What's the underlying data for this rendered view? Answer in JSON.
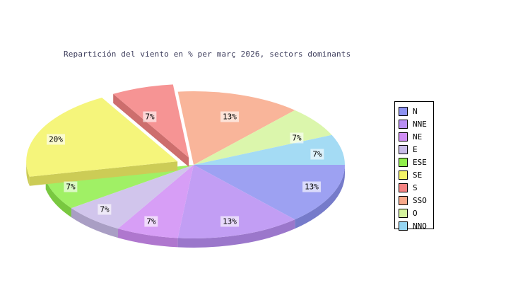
{
  "chart_data": {
    "type": "pie",
    "projection": "3d",
    "title": "Repartición del viento en % per març 2026, sectors dominants",
    "unit": "%",
    "legend_position": "right",
    "start_angle_deg": 0,
    "direction": "clockwise",
    "slices": [
      {
        "label": "N",
        "value": 13,
        "display_label": "13%",
        "angle_deg": 48,
        "color": "#8d92f0",
        "exploded": false
      },
      {
        "label": "NNE",
        "value": 13,
        "display_label": "13%",
        "angle_deg": 48,
        "color": "#b88ef2",
        "exploded": false
      },
      {
        "label": "NE",
        "value": 7,
        "display_label": "7%",
        "angle_deg": 24,
        "color": "#d08ef5",
        "exploded": false
      },
      {
        "label": "E",
        "value": 7,
        "display_label": "7%",
        "angle_deg": 24,
        "color": "#c9bce9",
        "exploded": false
      },
      {
        "label": "ESE",
        "value": 7,
        "display_label": "7%",
        "angle_deg": 24,
        "color": "#90ee4c",
        "exploded": false
      },
      {
        "label": "SE",
        "value": 20,
        "display_label": "20%",
        "angle_deg": 72,
        "color": "#f3f366",
        "exploded": true
      },
      {
        "label": "S",
        "value": 7,
        "display_label": "7%",
        "angle_deg": 24,
        "color": "#f48382",
        "exploded": true
      },
      {
        "label": "SSO",
        "value": 13,
        "display_label": "13%",
        "angle_deg": 48,
        "color": "#f8a98a",
        "exploded": false
      },
      {
        "label": "O",
        "value": 7,
        "display_label": "7%",
        "angle_deg": 24,
        "color": "#d5f49e",
        "exploded": false
      },
      {
        "label": "NNO",
        "value": 7,
        "display_label": "7%",
        "angle_deg": 24,
        "color": "#95d5f2",
        "exploded": false
      }
    ],
    "title_color": "#3d3d5c",
    "background_color": "#ffffff",
    "label_text_color": "#000000"
  }
}
